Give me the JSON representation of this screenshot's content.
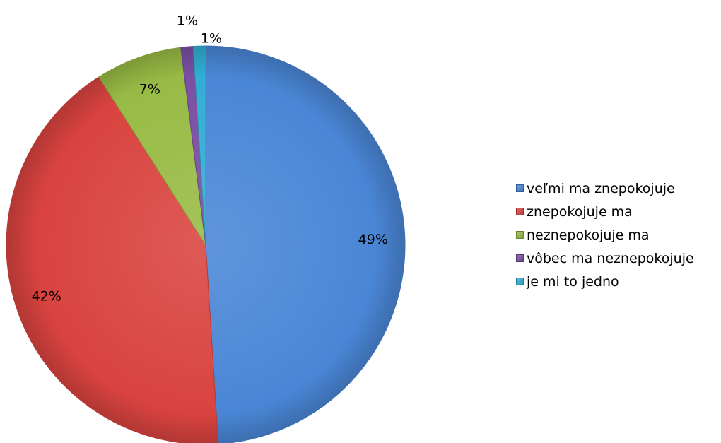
{
  "chart_data": {
    "type": "pie",
    "slices": [
      {
        "label": "veľmi ma znepokojuje",
        "value": 49,
        "display": "49%",
        "color": "#4a86d6"
      },
      {
        "label": "znepokojuje ma",
        "value": 42,
        "display": "42%",
        "color": "#d9433f"
      },
      {
        "label": "neznepokojuje ma",
        "value": 7,
        "display": "7%",
        "color": "#98bb45"
      },
      {
        "label": "vôbec ma neznepokojuje",
        "value": 1,
        "display": "1%",
        "color": "#7a4fa3"
      },
      {
        "label": "je mi to jedno",
        "value": 1,
        "display": "1%",
        "color": "#32aed3"
      }
    ],
    "legend_position": "right"
  }
}
